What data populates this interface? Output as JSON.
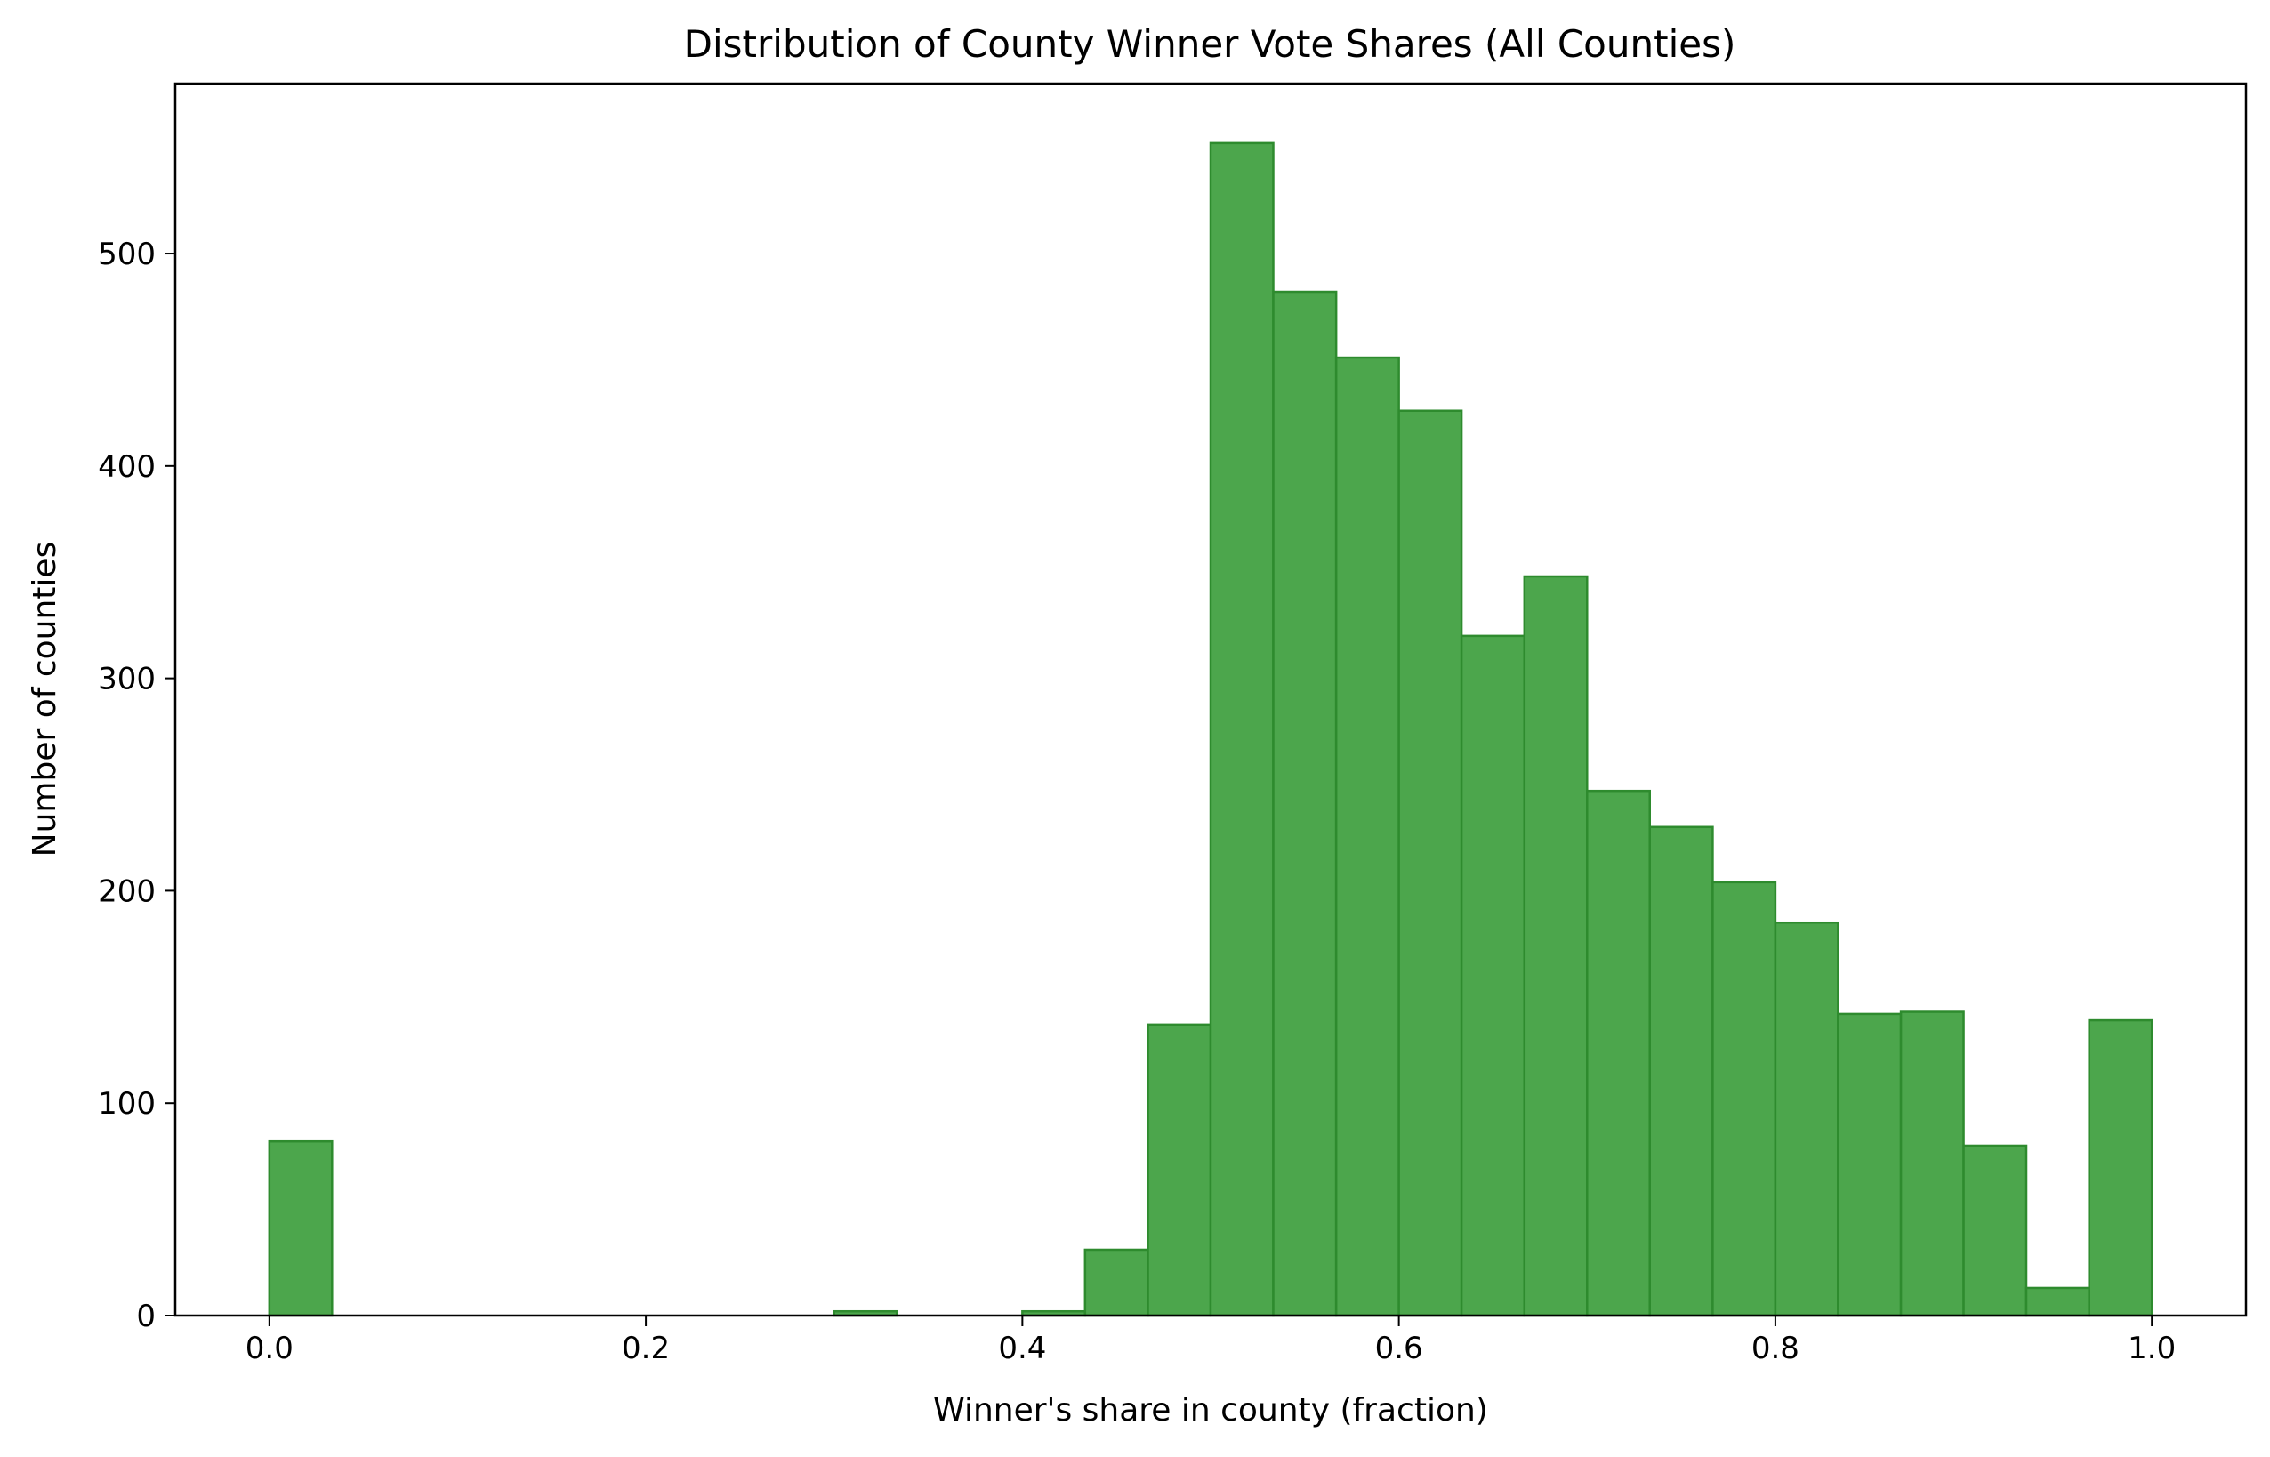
{
  "chart_data": {
    "type": "bar",
    "title": "Distribution of County Winner Vote Shares (All Counties)",
    "xlabel": "Winner's share in county (fraction)",
    "ylabel": "Number of counties",
    "xlim": [
      -0.05,
      1.05
    ],
    "ylim": [
      0,
      580
    ],
    "x_ticks": [
      0.0,
      0.2,
      0.4,
      0.6,
      0.8,
      1.0
    ],
    "x_tick_labels": [
      "0.0",
      "0.2",
      "0.4",
      "0.6",
      "0.8",
      "1.0"
    ],
    "y_ticks": [
      0,
      100,
      200,
      300,
      400,
      500
    ],
    "y_tick_labels": [
      "0",
      "100",
      "200",
      "300",
      "400",
      "500"
    ],
    "bin_edges": [
      0.0,
      0.0333,
      0.0667,
      0.1,
      0.1333,
      0.1667,
      0.2,
      0.2333,
      0.2667,
      0.3,
      0.3333,
      0.3667,
      0.4,
      0.4333,
      0.4667,
      0.5,
      0.5333,
      0.5667,
      0.6,
      0.6333,
      0.6667,
      0.7,
      0.7333,
      0.7667,
      0.8,
      0.8333,
      0.8667,
      0.9,
      0.9333,
      0.9667,
      1.0
    ],
    "counts": [
      82,
      0,
      0,
      0,
      0,
      0,
      0,
      0,
      0,
      2,
      0,
      0,
      2,
      31,
      137,
      552,
      482,
      451,
      426,
      320,
      348,
      247,
      230,
      204,
      185,
      142,
      143,
      80,
      13,
      139
    ],
    "bar_color": "#4ca64c",
    "edge_color": "#2e8b2e",
    "grid": false
  }
}
